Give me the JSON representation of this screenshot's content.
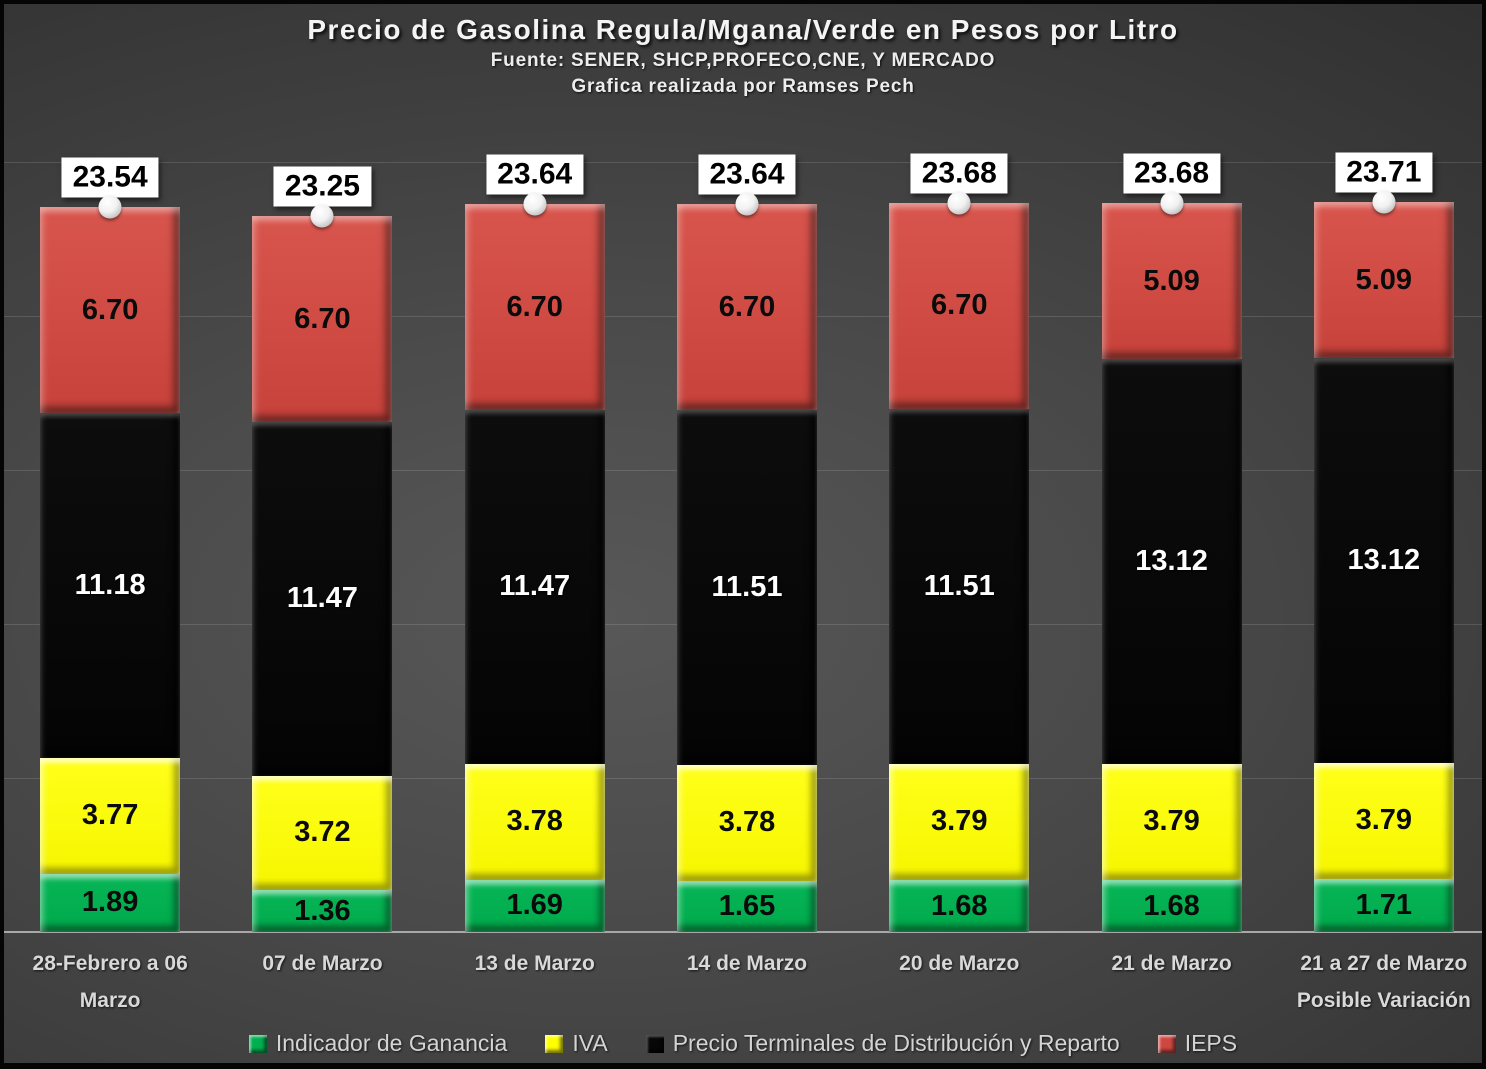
{
  "header": {
    "title": "Precio de Gasolina Regula/Mgana/Verde en Pesos por Litro",
    "source_line": "Fuente: SENER, SHCP,PROFECO,CNE, Y MERCADO",
    "credit_line": "Grafica realizada por Ramses Pech"
  },
  "colors": {
    "green": "#00B050",
    "yellow": "#FFFF00",
    "black": "#070707",
    "red": "#CE4841",
    "axis_line": "#A8A8A8",
    "gridline": "rgba(255,255,255,0.13)",
    "category_text": "#D9D9D9",
    "legend_text": "#D4D4D4",
    "total_label_bg": "#FFFFFF",
    "total_label_text": "#000000"
  },
  "chart_data": {
    "type": "bar",
    "stacked": true,
    "title": "Precio de Gasolina Regula/Mgana/Verde en Pesos por Litro",
    "subtitle": "Fuente: SENER, SHCP,PROFECO,CNE, Y MERCADO | Grafica realizada por Ramses Pech",
    "categories": [
      "28-Febrero a 06 Marzo",
      "07 de Marzo",
      "13 de Marzo",
      "14 de Marzo",
      "20 de Marzo",
      "21 de Marzo",
      "21 a 27 de Marzo Posible Variación"
    ],
    "series": [
      {
        "name": "Indicador de Ganancia",
        "color_key": "green",
        "values": [
          1.89,
          1.36,
          1.69,
          1.65,
          1.68,
          1.68,
          1.71
        ]
      },
      {
        "name": "IVA",
        "color_key": "yellow",
        "values": [
          3.77,
          3.72,
          3.78,
          3.78,
          3.79,
          3.79,
          3.79
        ]
      },
      {
        "name": "Precio Terminales de Distribución y Reparto",
        "color_key": "black",
        "values": [
          11.18,
          11.47,
          11.47,
          11.51,
          11.51,
          13.12,
          13.12
        ]
      },
      {
        "name": "IEPS",
        "color_key": "red",
        "values": [
          6.7,
          6.7,
          6.7,
          6.7,
          6.7,
          5.09,
          5.09
        ]
      }
    ],
    "totals": [
      23.54,
      23.25,
      23.64,
      23.64,
      23.68,
      23.68,
      23.71
    ],
    "xlabel": "",
    "ylabel": "",
    "ylim": [
      0,
      25
    ],
    "gridline_step": 5,
    "grid": true,
    "y_axis_tick_labels_visible": false,
    "value_label_format": "0.00",
    "legend_position": "bottom"
  }
}
